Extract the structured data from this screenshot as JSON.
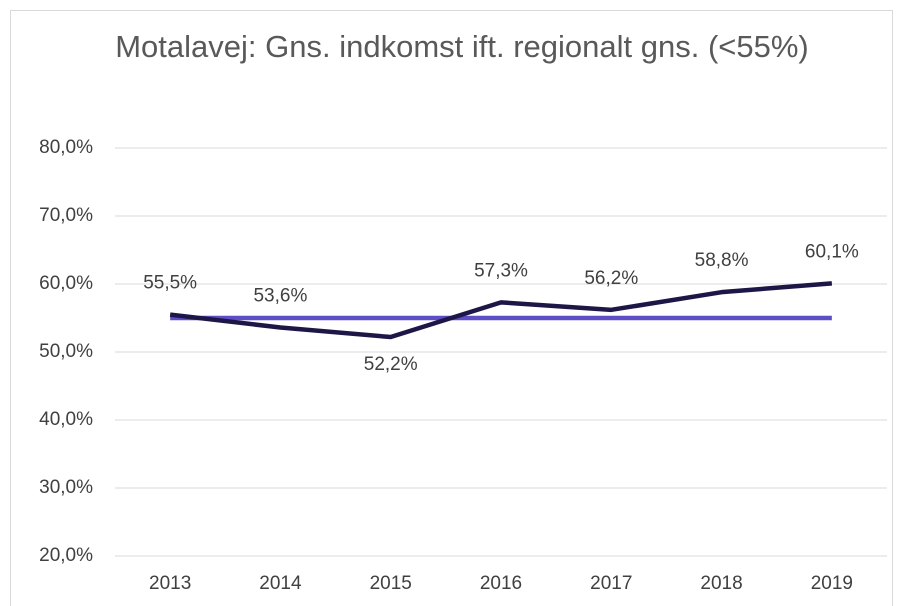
{
  "chart_data": {
    "type": "line",
    "title": "Motalavej: Gns. indkomst ift. regionalt gns. (<55%)",
    "categories": [
      "2013",
      "2014",
      "2015",
      "2016",
      "2017",
      "2018",
      "2019"
    ],
    "series": [
      {
        "color": "#1d1747",
        "values": [
          55.5,
          53.6,
          52.2,
          57.3,
          56.2,
          58.8,
          60.1
        ],
        "value_labels": [
          "55,5%",
          "53,6%",
          "52,2%",
          "57,3%",
          "56,2%",
          "58,8%",
          "60,1%"
        ]
      },
      {
        "color": "#5e4ec6",
        "values": [
          55,
          55,
          55,
          55,
          55,
          55,
          55
        ]
      }
    ],
    "ylim": [
      20,
      80
    ],
    "yticks": [
      {
        "value": 20,
        "label": "20,0%"
      },
      {
        "value": 30,
        "label": "30,0%"
      },
      {
        "value": 40,
        "label": "40,0%"
      },
      {
        "value": 50,
        "label": "50,0%"
      },
      {
        "value": 60,
        "label": "60,0%"
      },
      {
        "value": 70,
        "label": "70,0%"
      },
      {
        "value": 80,
        "label": "80,0%"
      }
    ],
    "grid": true
  }
}
